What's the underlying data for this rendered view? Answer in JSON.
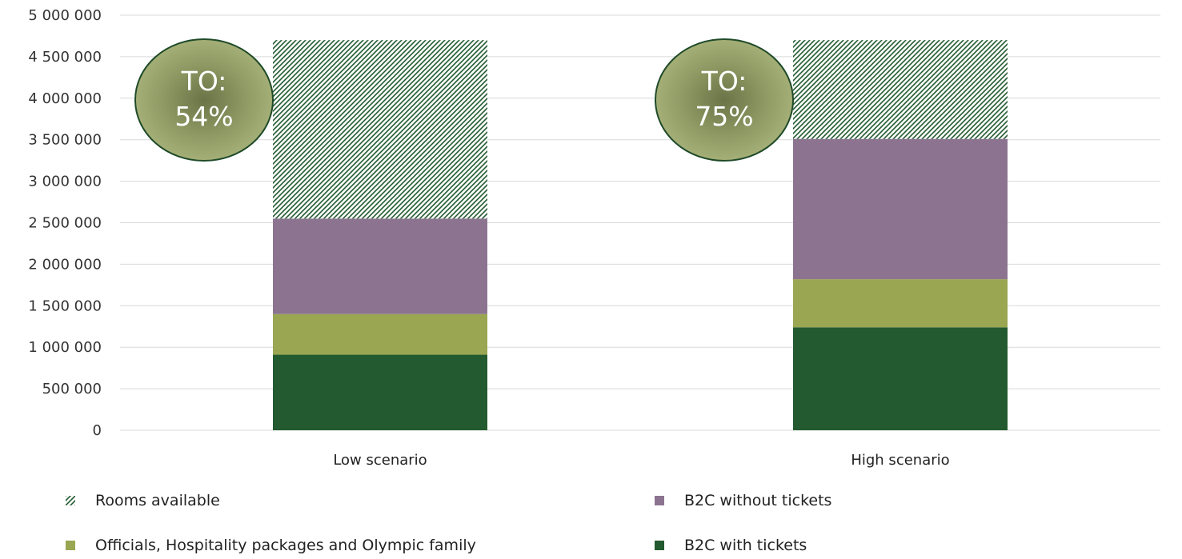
{
  "chart_data": {
    "type": "bar",
    "stacked": true,
    "categories": [
      "Low scenario",
      "High scenario"
    ],
    "series": [
      {
        "name": "B2C with tickets",
        "color": "#235a2f",
        "values": [
          910000,
          1240000
        ]
      },
      {
        "name": "Officials, Hospitality packages and Olympic family",
        "color": "#9aa651",
        "values": [
          490000,
          580000
        ]
      },
      {
        "name": "B2C without tickets",
        "color": "#8c7491",
        "values": [
          1150000,
          1690000
        ]
      },
      {
        "name": "Rooms available",
        "color": "#235a2f",
        "pattern": "hatched",
        "values": [
          2150000,
          1190000
        ]
      }
    ],
    "ylim": [
      0,
      5000000
    ],
    "yticks": [
      0,
      500000,
      1000000,
      1500000,
      2000000,
      2500000,
      3000000,
      3500000,
      4000000,
      4500000,
      5000000
    ],
    "ytick_labels": [
      "0",
      "500 000",
      "1 000 000",
      "1 500 000",
      "2 000 000",
      "2 500 000",
      "3 000 000",
      "3 500 000",
      "4 000 000",
      "4 500 000",
      "5 000 000"
    ],
    "grid": true,
    "legend_position": "bottom",
    "legend_order": [
      "Rooms available",
      "B2C without tickets",
      "Officials, Hospitality packages and Olympic family",
      "B2C with tickets"
    ],
    "annotations": [
      {
        "category": "Low scenario",
        "line1": "TO:",
        "line2": "54%"
      },
      {
        "category": "High scenario",
        "line1": "TO:",
        "line2": "75%"
      }
    ]
  }
}
